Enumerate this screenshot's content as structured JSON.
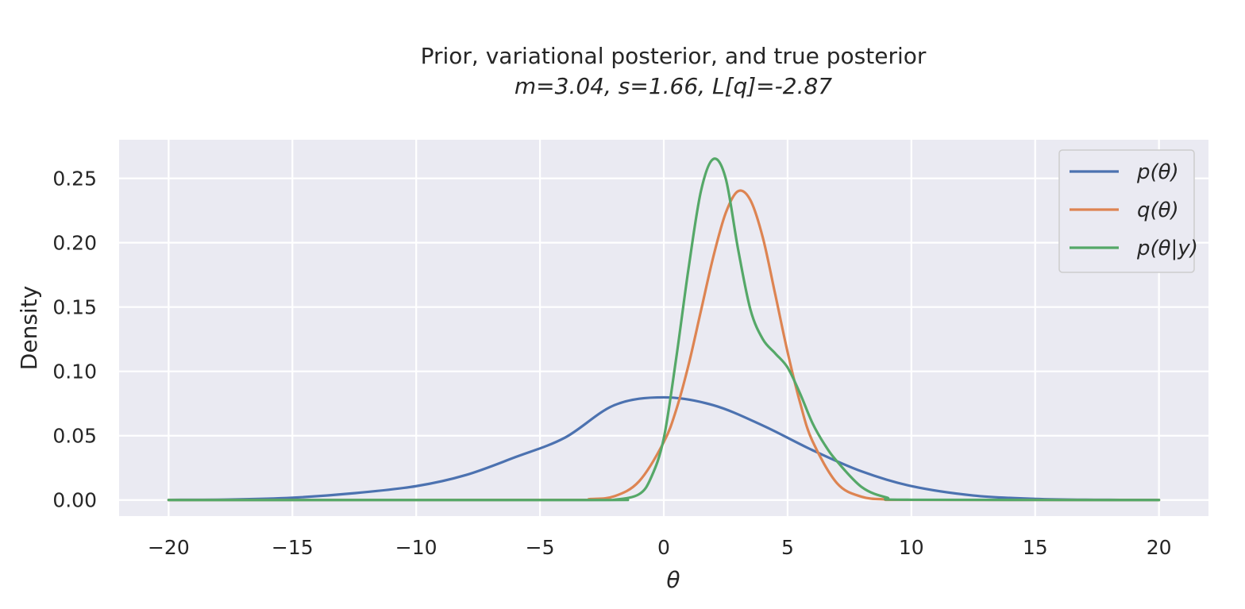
{
  "chart_data": {
    "type": "line",
    "title_line1": "Prior, variational posterior, and true posterior",
    "title_line2": "m=3.04, s=1.66, L[q]=-2.87",
    "xlabel": "θ",
    "ylabel": "Density",
    "xlim": [
      -22,
      22
    ],
    "ylim": [
      -0.0125,
      0.28
    ],
    "xticks": [
      -20,
      -15,
      -10,
      -5,
      0,
      5,
      10,
      15,
      20
    ],
    "yticks": [
      0.0,
      0.05,
      0.1,
      0.15,
      0.2,
      0.25
    ],
    "xtick_labels": [
      "−20",
      "−15",
      "−10",
      "−5",
      "0",
      "5",
      "10",
      "15",
      "20"
    ],
    "ytick_labels": [
      "0.00",
      "0.05",
      "0.10",
      "0.15",
      "0.20",
      "0.25"
    ],
    "grid": true,
    "legend_position": "top-right",
    "background": "#eaeaf2",
    "series": [
      {
        "name": "p(θ)",
        "color": "#4c72b0",
        "x": [
          -20,
          -17.5,
          -15,
          -12.5,
          -10,
          -8,
          -6,
          -4,
          -2,
          0,
          2,
          4,
          6,
          8,
          10,
          12.5,
          15,
          17.5,
          20
        ],
        "y": [
          0.0001,
          0.0004,
          0.0018,
          0.0053,
          0.0108,
          0.0194,
          0.0333,
          0.0484,
          0.0737,
          0.0798,
          0.0737,
          0.0579,
          0.0388,
          0.0222,
          0.0108,
          0.0035,
          0.0009,
          0.0002,
          0.0001
        ]
      },
      {
        "name": "q(θ)",
        "color": "#dd8452",
        "x": [
          -20,
          -4,
          -3,
          -2,
          -1,
          0,
          0.5,
          1,
          1.5,
          2,
          2.5,
          3,
          3.5,
          4,
          4.5,
          5,
          5.5,
          6,
          7,
          8,
          9,
          10,
          20
        ],
        "y": [
          0.0,
          0.0001,
          0.0007,
          0.0029,
          0.0145,
          0.045,
          0.07,
          0.105,
          0.147,
          0.189,
          0.223,
          0.24,
          0.233,
          0.204,
          0.16,
          0.115,
          0.076,
          0.046,
          0.013,
          0.0025,
          0.0005,
          0.0001,
          0.0
        ]
      },
      {
        "name": "p(θ|y)",
        "color": "#55a868",
        "x": [
          -20,
          -3,
          -2,
          -1,
          -0.5,
          0,
          0.5,
          1,
          1.5,
          2,
          2.5,
          3,
          3.5,
          4,
          4.5,
          5,
          5.5,
          6,
          6.5,
          7,
          8,
          9,
          10,
          20
        ],
        "y": [
          0.0,
          0.0,
          0.0002,
          0.0045,
          0.018,
          0.048,
          0.11,
          0.18,
          0.24,
          0.265,
          0.25,
          0.195,
          0.148,
          0.125,
          0.114,
          0.103,
          0.083,
          0.06,
          0.043,
          0.03,
          0.01,
          0.002,
          0.0002,
          0.0
        ]
      }
    ]
  }
}
